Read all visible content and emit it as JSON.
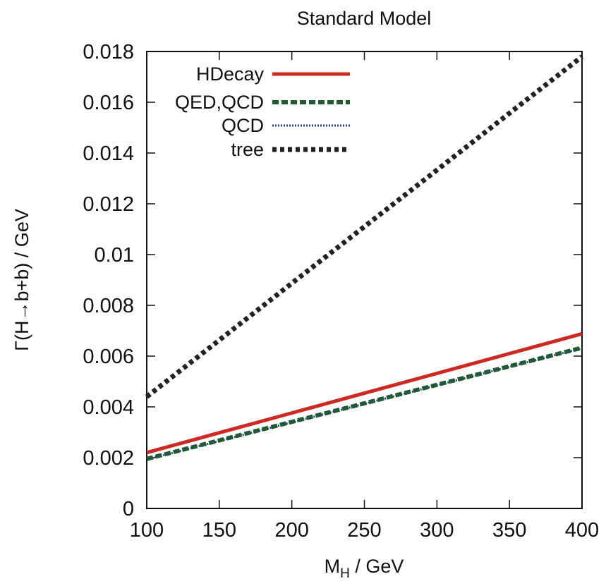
{
  "chart_data": {
    "type": "line",
    "title": "Standard Model",
    "xlabel_main": "M",
    "xlabel_sub": "H",
    "xlabel_rest": " / GeV",
    "ylabel": "Γ(H→b+b) / GeV",
    "xlim": [
      100,
      400
    ],
    "ylim": [
      0,
      0.018
    ],
    "x_ticks": [
      "100",
      "150",
      "200",
      "250",
      "300",
      "350",
      "400"
    ],
    "y_ticks": [
      "0",
      "0.002",
      "0.004",
      "0.006",
      "0.008",
      "0.01",
      "0.012",
      "0.014",
      "0.016",
      "0.018"
    ],
    "legend_position": "top-left",
    "grid": false,
    "series": [
      {
        "name": "HDecay",
        "x": [
          100,
          150,
          200,
          250,
          300,
          350,
          400
        ],
        "y": [
          0.0022,
          0.00298,
          0.00376,
          0.00454,
          0.00532,
          0.0061,
          0.00688
        ],
        "color": "#cc2a22",
        "style": "solid"
      },
      {
        "name": "QED,QCD",
        "x": [
          100,
          150,
          200,
          250,
          300,
          350,
          400
        ],
        "y": [
          0.00195,
          0.00268,
          0.00341,
          0.00414,
          0.00487,
          0.0056,
          0.00633
        ],
        "color": "#1f5a35",
        "style": "dashed"
      },
      {
        "name": "QCD",
        "x": [
          100,
          150,
          200,
          250,
          300,
          350,
          400
        ],
        "y": [
          0.00193,
          0.00266,
          0.00339,
          0.00412,
          0.00485,
          0.00558,
          0.00631
        ],
        "color": "#2a3f8f",
        "style": "dotted"
      },
      {
        "name": "tree",
        "x": [
          100,
          150,
          200,
          250,
          300,
          350,
          400
        ],
        "y": [
          0.0044,
          0.00663,
          0.00887,
          0.0111,
          0.01333,
          0.01557,
          0.0178
        ],
        "color": "#222222",
        "style": "dotted-thick"
      }
    ]
  }
}
